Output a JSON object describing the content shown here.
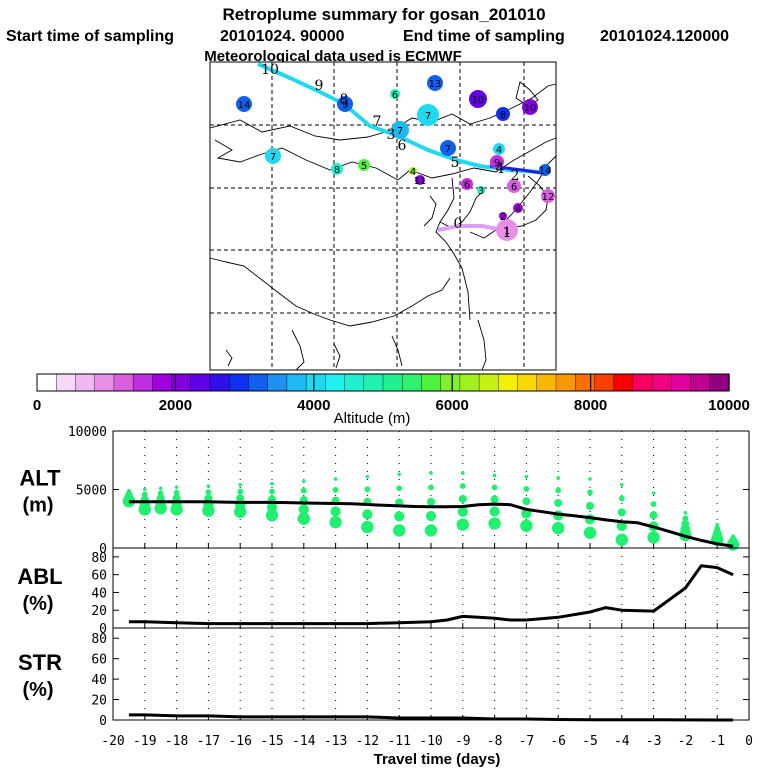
{
  "header": {
    "title": "Retroplume summary for gosan_201010",
    "start_label": "Start time of sampling",
    "start_value": "20101024. 90000",
    "end_label": "End time of sampling",
    "end_value": "20101024.120000",
    "met_line": "Meteorological data used is ECMWF"
  },
  "colorbar": {
    "title": "Altitude  (m)",
    "range": [
      0,
      10000
    ],
    "tick_labels": [
      "0",
      "2000",
      "4000",
      "6000",
      "8000",
      "10000"
    ],
    "colors": [
      "#ffffff",
      "#f8d8f8",
      "#f0b8f0",
      "#e890e8",
      "#d860e0",
      "#c030e0",
      "#a000e0",
      "#8000e0",
      "#6000e8",
      "#3010e8",
      "#1030f0",
      "#1060f0",
      "#2090f0",
      "#20b8f0",
      "#20d8f0",
      "#20f0f0",
      "#20f0d0",
      "#20f0b0",
      "#20f090",
      "#30f070",
      "#50f040",
      "#80f030",
      "#a0f020",
      "#c8f010",
      "#f0f000",
      "#f8d800",
      "#f8b800",
      "#f89800",
      "#f87000",
      "#f84000",
      "#f80000",
      "#f80060",
      "#f00080",
      "#e000a0",
      "#c00090",
      "#900080"
    ]
  },
  "map": {
    "trajectory_labels": [
      "0",
      "1",
      "2",
      "3",
      "4",
      "5",
      "6",
      "7",
      "8",
      "9",
      "10"
    ],
    "cluster_labels": [
      "1",
      "2",
      "3",
      "4",
      "5",
      "6",
      "7",
      "8",
      "9",
      "10",
      "11",
      "12",
      "13",
      "14"
    ],
    "colors": {
      "trajectory": "#20d8f0",
      "trajectory_end": "#2020e0",
      "trajectory_start": "#d8a0f0"
    }
  },
  "chart_data": [
    {
      "type": "line",
      "name": "ALT",
      "ylabel": "ALT",
      "yunit": "(m)",
      "ylim": [
        0,
        10000
      ],
      "yticks": [
        0,
        5000,
        10000
      ],
      "x": [
        -19.5,
        -19,
        -18.5,
        -18,
        -17.5,
        -17,
        -16.5,
        -16,
        -15.5,
        -15,
        -14.5,
        -14,
        -13.5,
        -13,
        -12.5,
        -12,
        -11.5,
        -11,
        -10.5,
        -10,
        -9.5,
        -9,
        -8.5,
        -8,
        -7.5,
        -7,
        -6.5,
        -6,
        -5.5,
        -5,
        -4.5,
        -4,
        -3.5,
        -3,
        -2.5,
        -2,
        -1.5,
        -1,
        -0.5
      ],
      "values": [
        3950,
        3950,
        3950,
        3950,
        3950,
        3950,
        3920,
        3900,
        3900,
        3900,
        3880,
        3850,
        3820,
        3800,
        3780,
        3720,
        3650,
        3600,
        3550,
        3530,
        3520,
        3550,
        3700,
        3750,
        3700,
        3300,
        3100,
        2900,
        2750,
        2600,
        2400,
        2250,
        2150,
        1800,
        1400,
        1000,
        650,
        350,
        150
      ],
      "scatter_x": [
        -19.5,
        -19,
        -18.5,
        -18,
        -17,
        -16,
        -15,
        -14,
        -13,
        -12,
        -11,
        -10,
        -9,
        -8,
        -7,
        -6,
        -5,
        -4,
        -3,
        -2,
        -1,
        -0.5
      ],
      "scatter_hi": [
        4900,
        5000,
        5100,
        5200,
        5300,
        5400,
        5500,
        5700,
        5900,
        6100,
        6300,
        6400,
        6400,
        6200,
        6100,
        6000,
        5900,
        5400,
        4700,
        3000,
        2000,
        1000
      ],
      "scatter_lo": [
        4000,
        3300,
        3400,
        3300,
        3200,
        3100,
        2800,
        2500,
        2200,
        1800,
        1500,
        1500,
        2000,
        2100,
        1900,
        1700,
        1300,
        700,
        900,
        1100,
        700,
        300
      ]
    },
    {
      "type": "line",
      "name": "ABL",
      "ylabel": "ABL",
      "yunit": "(%)",
      "ylim": [
        0,
        90
      ],
      "yticks": [
        0,
        20,
        40,
        60,
        80
      ],
      "x": [
        -19.5,
        -19,
        -18,
        -17,
        -16,
        -15,
        -14,
        -13,
        -12,
        -11,
        -10,
        -9.5,
        -9,
        -8.5,
        -8,
        -7.5,
        -7,
        -6,
        -5,
        -4.5,
        -4,
        -3,
        -2,
        -1.5,
        -1,
        -0.5
      ],
      "values": [
        7,
        7,
        6,
        5,
        5,
        5,
        5,
        5,
        5,
        6,
        7,
        9,
        13,
        12,
        11,
        9,
        9,
        12,
        18,
        23,
        20,
        19,
        45,
        70,
        68,
        60
      ]
    },
    {
      "type": "line",
      "name": "STR",
      "ylabel": "STR",
      "yunit": "(%)",
      "ylim": [
        0,
        90
      ],
      "yticks": [
        0,
        20,
        40,
        60,
        80
      ],
      "x": [
        -19.5,
        -19,
        -18,
        -17,
        -16,
        -15,
        -14,
        -13,
        -12,
        -11,
        -10,
        -9,
        -8,
        -7,
        -6,
        -5,
        -4,
        -3,
        -2,
        -1,
        -0.5
      ],
      "values": [
        5,
        5,
        4,
        4,
        3,
        3,
        3,
        3,
        3,
        2,
        2,
        2,
        1,
        1,
        0.5,
        0.3,
        0.2,
        0.2,
        0.1,
        0,
        0
      ]
    }
  ],
  "xaxis": {
    "label": "Travel time (days)",
    "range": [
      -20,
      0
    ],
    "tick_labels": [
      "-20",
      "-19",
      "-18",
      "-17",
      "-16",
      "-15",
      "-14",
      "-13",
      "-12",
      "-11",
      "-10",
      "-9",
      "-8",
      "-7",
      "-6",
      "-5",
      "-4",
      "-3",
      "-2",
      "-1",
      "0"
    ]
  }
}
